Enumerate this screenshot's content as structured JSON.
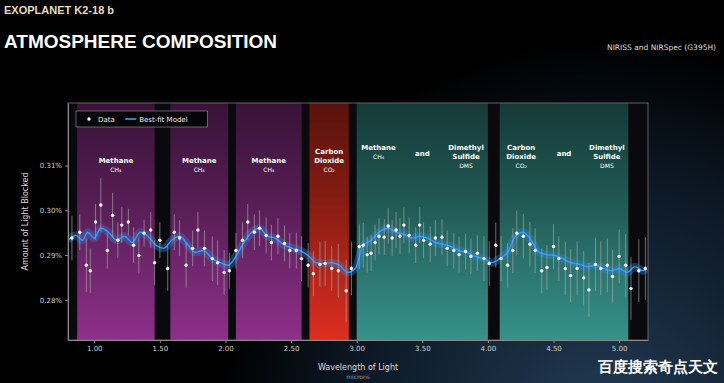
{
  "chart_data": {
    "type": "scatter",
    "supertitle": "EXOPLANET K2-18 b",
    "title": "ATMOSPHERE COMPOSITION",
    "subtitle": "NIRISS and NIRSpec (G395H)",
    "x_label": "Wavelength of Light",
    "x_unit": "microns",
    "y_label": "Amount of Light Blocked",
    "source": "百度搜索奇点天文",
    "xlim": [
      0.8,
      5.22
    ],
    "xticks": [
      {
        "value": 1,
        "label": "1.00"
      },
      {
        "value": 1.5,
        "label": "1.50"
      },
      {
        "value": 2,
        "label": "2.00"
      },
      {
        "value": 2.5,
        "label": "2.50"
      },
      {
        "value": 3,
        "label": "3.00"
      },
      {
        "value": 3.5,
        "label": "3.50"
      },
      {
        "value": 4,
        "label": "4.00"
      },
      {
        "value": 4.5,
        "label": "4.50"
      },
      {
        "value": 5,
        "label": "5.00"
      }
    ],
    "ylim": [
      0.271,
      0.324
    ],
    "yticks": [
      {
        "value": 0.28,
        "label": "0.28%"
      },
      {
        "value": 0.29,
        "label": "0.29%"
      },
      {
        "value": 0.3,
        "label": "0.30%"
      },
      {
        "value": 0.31,
        "label": "0.31%"
      }
    ],
    "grid": false,
    "legend": "upper left",
    "series": [
      {
        "name": "Data",
        "type": "scatter",
        "color": "#ffffff",
        "marker": "circle",
        "x": [
          0.83,
          0.89,
          0.94,
          0.97,
          1.01,
          1.05,
          1.1,
          1.14,
          1.18,
          1.21,
          1.26,
          1.3,
          1.34,
          1.38,
          1.43,
          1.46,
          1.5,
          1.56,
          1.61,
          1.65,
          1.7,
          1.75,
          1.79,
          1.84,
          1.9,
          1.94,
          1.99,
          2.03,
          2.08,
          2.13,
          2.17,
          2.22,
          2.26,
          2.31,
          2.35,
          2.4,
          2.45,
          2.49,
          2.54,
          2.58,
          2.63,
          2.67,
          2.72,
          2.76,
          2.81,
          2.86,
          2.92,
          2.96,
          3.02,
          3.05,
          3.08,
          3.11,
          3.14,
          3.17,
          3.21,
          3.24,
          3.27,
          3.3,
          3.33,
          3.36,
          3.4,
          3.45,
          3.48,
          3.51,
          3.56,
          3.6,
          3.65,
          3.69,
          3.74,
          3.78,
          3.83,
          3.87,
          3.92,
          3.97,
          4.01,
          4.06,
          4.1,
          4.15,
          4.19,
          4.22,
          4.27,
          4.32,
          4.36,
          4.41,
          4.45,
          4.5,
          4.54,
          4.59,
          4.63,
          4.68,
          4.73,
          4.77,
          4.82,
          4.86,
          4.91,
          4.95,
          5.0,
          5.05,
          5.09,
          5.15,
          5.2
        ],
        "values": [
          0.2938,
          0.2951,
          0.2877,
          0.2865,
          0.2974,
          0.3012,
          0.291,
          0.2989,
          0.2933,
          0.2967,
          0.2974,
          0.2922,
          0.2899,
          0.2949,
          0.2956,
          0.2883,
          0.2933,
          0.287,
          0.2951,
          0.2938,
          0.2877,
          0.2915,
          0.2956,
          0.2915,
          0.2892,
          0.2883,
          0.2861,
          0.2865,
          0.291,
          0.2933,
          0.2974,
          0.2951,
          0.296,
          0.2944,
          0.2928,
          0.2942,
          0.2926,
          0.291,
          0.291,
          0.2892,
          0.2877,
          0.2858,
          0.2879,
          0.2881,
          0.287,
          0.2865,
          0.282,
          0.287,
          0.2919,
          0.2922,
          0.2901,
          0.2904,
          0.2928,
          0.2942,
          0.294,
          0.2965,
          0.2938,
          0.2956,
          0.2942,
          0.2967,
          0.2944,
          0.2922,
          0.2967,
          0.2933,
          0.2924,
          0.2938,
          0.294,
          0.2915,
          0.291,
          0.2901,
          0.2908,
          0.2897,
          0.2904,
          0.2892,
          0.2881,
          0.2922,
          0.2892,
          0.2877,
          0.291,
          0.2949,
          0.2942,
          0.2924,
          0.291,
          0.2865,
          0.2872,
          0.2919,
          0.2892,
          0.287,
          0.2854,
          0.287,
          0.2849,
          0.2822,
          0.2879,
          0.287,
          0.2877,
          0.2852,
          0.2897,
          0.2877,
          0.2825,
          0.2865,
          0.287
        ],
        "errors": [
          0.005,
          0.004,
          0.006,
          0.005,
          0.004,
          0.006,
          0.004,
          0.005,
          0.004,
          0.004,
          0.003,
          0.004,
          0.004,
          0.003,
          0.004,
          0.005,
          0.004,
          0.005,
          0.004,
          0.004,
          0.005,
          0.004,
          0.004,
          0.004,
          0.005,
          0.005,
          0.005,
          0.004,
          0.004,
          0.004,
          0.004,
          0.004,
          0.004,
          0.004,
          0.004,
          0.004,
          0.004,
          0.004,
          0.004,
          0.005,
          0.005,
          0.005,
          0.005,
          0.005,
          0.005,
          0.006,
          0.007,
          0.006,
          0.005,
          0.005,
          0.004,
          0.004,
          0.004,
          0.004,
          0.004,
          0.004,
          0.004,
          0.004,
          0.004,
          0.004,
          0.004,
          0.004,
          0.004,
          0.004,
          0.004,
          0.004,
          0.004,
          0.004,
          0.004,
          0.004,
          0.004,
          0.004,
          0.004,
          0.005,
          0.005,
          0.005,
          0.005,
          0.005,
          0.005,
          0.005,
          0.005,
          0.005,
          0.005,
          0.005,
          0.005,
          0.005,
          0.005,
          0.006,
          0.006,
          0.006,
          0.006,
          0.006,
          0.006,
          0.006,
          0.006,
          0.006,
          0.006,
          0.007,
          0.007,
          0.007,
          0.007
        ]
      },
      {
        "name": "Best-fit Model",
        "type": "line",
        "color": "#2f86e0",
        "line_style": "solid",
        "x": [
          0.8,
          0.86,
          0.91,
          0.95,
          1.0,
          1.05,
          1.11,
          1.17,
          1.23,
          1.29,
          1.35,
          1.41,
          1.47,
          1.53,
          1.59,
          1.65,
          1.71,
          1.77,
          1.83,
          1.9,
          1.96,
          2.02,
          2.08,
          2.14,
          2.2,
          2.26,
          2.32,
          2.38,
          2.44,
          2.51,
          2.57,
          2.63,
          2.69,
          2.75,
          2.81,
          2.87,
          2.93,
          2.99,
          3.05,
          3.11,
          3.17,
          3.24,
          3.3,
          3.36,
          3.42,
          3.48,
          3.54,
          3.6,
          3.66,
          3.72,
          3.78,
          3.84,
          3.9,
          3.97,
          4.03,
          4.09,
          4.15,
          4.21,
          4.27,
          4.33,
          4.39,
          4.45,
          4.51,
          4.57,
          4.63,
          4.7,
          4.76,
          4.82,
          4.88,
          4.94,
          5.0,
          5.06,
          5.12,
          5.18,
          5.21
        ],
        "values": [
          0.2933,
          0.2944,
          0.2933,
          0.2951,
          0.2938,
          0.296,
          0.2951,
          0.2933,
          0.2942,
          0.2928,
          0.2951,
          0.2942,
          0.2922,
          0.2915,
          0.2933,
          0.2942,
          0.2924,
          0.2906,
          0.291,
          0.2892,
          0.2883,
          0.2877,
          0.2897,
          0.2928,
          0.2951,
          0.296,
          0.2942,
          0.2938,
          0.2924,
          0.2915,
          0.291,
          0.2899,
          0.2883,
          0.2881,
          0.2883,
          0.2877,
          0.2861,
          0.287,
          0.2922,
          0.2933,
          0.2951,
          0.296,
          0.2951,
          0.2947,
          0.2938,
          0.2942,
          0.2938,
          0.2928,
          0.2924,
          0.2919,
          0.291,
          0.2906,
          0.2897,
          0.2892,
          0.2883,
          0.2892,
          0.2906,
          0.2942,
          0.2951,
          0.2933,
          0.2906,
          0.2901,
          0.2899,
          0.2892,
          0.2883,
          0.2879,
          0.2874,
          0.2877,
          0.287,
          0.2865,
          0.287,
          0.2861,
          0.2874,
          0.2865,
          0.287
        ]
      }
    ],
    "bands": [
      {
        "x0": 0.87,
        "x1": 1.46,
        "color": "#7a2a78",
        "labels": [
          [
            "Methane",
            "CH₄"
          ]
        ]
      },
      {
        "x0": 1.58,
        "x1": 2.02,
        "color": "#7a2a78",
        "labels": [
          [
            "Methane",
            "CH₄"
          ]
        ]
      },
      {
        "x0": 2.08,
        "x1": 2.58,
        "color": "#7a2a78",
        "labels": [
          [
            "Methane",
            "CH₄"
          ]
        ]
      },
      {
        "x0": 2.64,
        "x1": 2.94,
        "color": "#c0281c",
        "labels": [
          [
            "Carbon",
            "Dioxide",
            "CO₂"
          ]
        ]
      },
      {
        "x0": 3.0,
        "x1": 4.0,
        "color": "#2f7f78",
        "labels": [
          [
            "Methane",
            "CH₄"
          ],
          [
            "and"
          ],
          [
            "Dimethyl",
            "Sulfide",
            "DMS"
          ]
        ]
      },
      {
        "x0": 4.09,
        "x1": 5.07,
        "color": "#2f7f78",
        "labels": [
          [
            "Carbon",
            "Dioxide",
            "CO₂"
          ],
          [
            "and"
          ],
          [
            "Dimethyl",
            "Sulfide",
            "DMS"
          ]
        ]
      }
    ]
  }
}
